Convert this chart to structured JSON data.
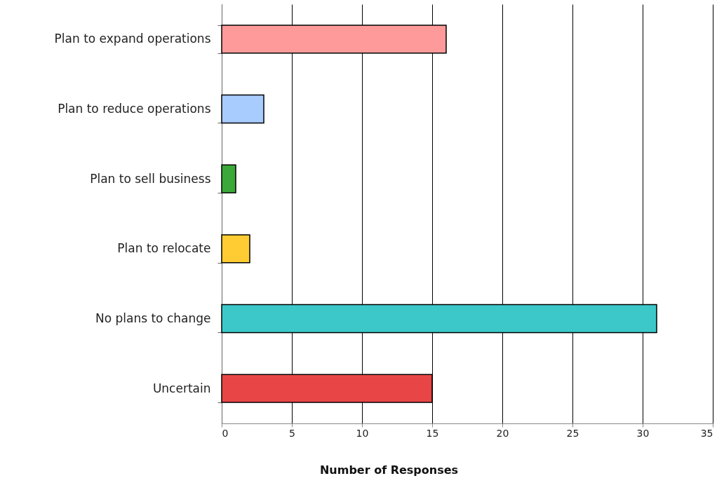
{
  "chart_data": {
    "type": "bar",
    "orientation": "horizontal",
    "xlabel": "Number of Responses",
    "categories": [
      "Plan to expand operations",
      "Plan to reduce operations",
      "Plan to sell business",
      "Plan to relocate",
      "No plans to change",
      "Uncertain"
    ],
    "values": [
      16,
      3,
      1,
      2,
      31,
      15
    ],
    "colors": [
      "#ff9a9a",
      "#a9ccff",
      "#3aa83a",
      "#ffcc33",
      "#3cc8c8",
      "#e84646"
    ],
    "xlim": [
      0,
      35
    ],
    "xticks": [
      0,
      5,
      10,
      15,
      20,
      25,
      30,
      35
    ],
    "grid": "x"
  }
}
